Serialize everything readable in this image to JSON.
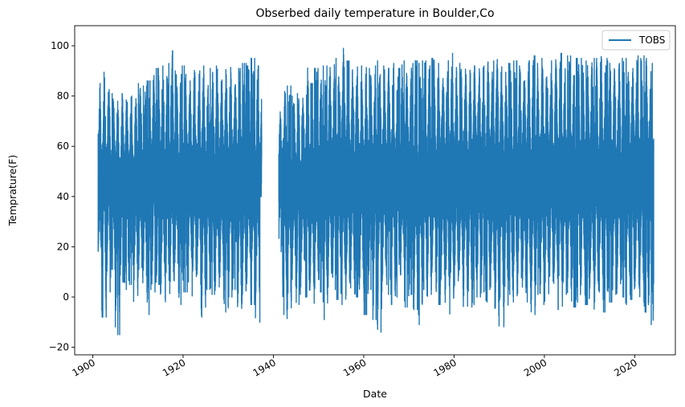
{
  "chart_data": {
    "type": "line",
    "title": "Obserbed daily temperature in Boulder,Co",
    "xlabel": "Date",
    "ylabel": "Temprature(F)",
    "xlim": [
      1896.0,
      2029.0
    ],
    "ylim": [
      -23,
      108
    ],
    "x_ticks": [
      1900,
      1920,
      1940,
      1960,
      1980,
      2000,
      2020
    ],
    "y_ticks": [
      -20,
      0,
      20,
      40,
      60,
      80,
      100
    ],
    "grid": false,
    "legend": {
      "position": "top-right",
      "entries": [
        "TOBS"
      ]
    },
    "series": [
      {
        "name": "TOBS",
        "color": "#1f77b4",
        "segments": [
          {
            "start": 1901.2,
            "end": 1937.4
          },
          {
            "start": 1941.2,
            "end": 2024.2
          }
        ],
        "yearly_extremes": [
          {
            "year": 1901,
            "min": 4,
            "max": 85
          },
          {
            "year": 1902,
            "min": -8,
            "max": 90
          },
          {
            "year": 1903,
            "min": 2,
            "max": 86
          },
          {
            "year": 1904,
            "min": 11,
            "max": 81
          },
          {
            "year": 1905,
            "min": -15,
            "max": 78
          },
          {
            "year": 1906,
            "min": 6,
            "max": 81
          },
          {
            "year": 1907,
            "min": 3,
            "max": 83
          },
          {
            "year": 1908,
            "min": 5,
            "max": 82
          },
          {
            "year": 1909,
            "min": -2,
            "max": 80
          },
          {
            "year": 1910,
            "min": 4,
            "max": 85
          },
          {
            "year": 1911,
            "min": 1,
            "max": 84
          },
          {
            "year": 1912,
            "min": -7,
            "max": 86
          },
          {
            "year": 1913,
            "min": 2,
            "max": 92
          },
          {
            "year": 1914,
            "min": 5,
            "max": 91
          },
          {
            "year": 1915,
            "min": 0,
            "max": 94
          },
          {
            "year": 1916,
            "min": -5,
            "max": 93
          },
          {
            "year": 1917,
            "min": 1,
            "max": 98
          },
          {
            "year": 1918,
            "min": 4,
            "max": 90
          },
          {
            "year": 1919,
            "min": -3,
            "max": 92
          },
          {
            "year": 1920,
            "min": 2,
            "max": 92
          },
          {
            "year": 1921,
            "min": 6,
            "max": 86
          },
          {
            "year": 1922,
            "min": -1,
            "max": 93
          },
          {
            "year": 1923,
            "min": 5,
            "max": 90
          },
          {
            "year": 1924,
            "min": -8,
            "max": 92
          },
          {
            "year": 1925,
            "min": 3,
            "max": 88
          },
          {
            "year": 1926,
            "min": 1,
            "max": 91
          },
          {
            "year": 1927,
            "min": -2,
            "max": 92
          },
          {
            "year": 1928,
            "min": 4,
            "max": 89
          },
          {
            "year": 1929,
            "min": -6,
            "max": 93
          },
          {
            "year": 1930,
            "min": 0,
            "max": 92
          },
          {
            "year": 1931,
            "min": 3,
            "max": 88
          },
          {
            "year": 1932,
            "min": -12,
            "max": 91
          },
          {
            "year": 1933,
            "min": -5,
            "max": 93
          },
          {
            "year": 1934,
            "min": 2,
            "max": 92
          },
          {
            "year": 1935,
            "min": -3,
            "max": 95
          },
          {
            "year": 1936,
            "min": -11,
            "max": 92
          },
          {
            "year": 1937,
            "min": 40,
            "max": 92
          },
          {
            "year": 1941,
            "min": 18,
            "max": 75
          },
          {
            "year": 1942,
            "min": -7,
            "max": 85
          },
          {
            "year": 1943,
            "min": -12,
            "max": 84
          },
          {
            "year": 1944,
            "min": 2,
            "max": 80
          },
          {
            "year": 1945,
            "min": -3,
            "max": 81
          },
          {
            "year": 1946,
            "min": 4,
            "max": 82
          },
          {
            "year": 1947,
            "min": 0,
            "max": 95
          },
          {
            "year": 1948,
            "min": -1,
            "max": 85
          },
          {
            "year": 1949,
            "min": -6,
            "max": 91
          },
          {
            "year": 1950,
            "min": 2,
            "max": 88
          },
          {
            "year": 1951,
            "min": -9,
            "max": 92
          },
          {
            "year": 1952,
            "min": 1,
            "max": 96
          },
          {
            "year": 1953,
            "min": 3,
            "max": 95
          },
          {
            "year": 1954,
            "min": -1,
            "max": 96
          },
          {
            "year": 1955,
            "min": -3,
            "max": 102
          },
          {
            "year": 1956,
            "min": -5,
            "max": 94
          },
          {
            "year": 1957,
            "min": 2,
            "max": 91
          },
          {
            "year": 1958,
            "min": 0,
            "max": 95
          },
          {
            "year": 1959,
            "min": 1,
            "max": 92
          },
          {
            "year": 1960,
            "min": -7,
            "max": 93
          },
          {
            "year": 1961,
            "min": 3,
            "max": 91
          },
          {
            "year": 1962,
            "min": -9,
            "max": 92
          },
          {
            "year": 1963,
            "min": -14,
            "max": 94
          },
          {
            "year": 1964,
            "min": 2,
            "max": 92
          },
          {
            "year": 1965,
            "min": 1,
            "max": 92
          },
          {
            "year": 1966,
            "min": -3,
            "max": 93
          },
          {
            "year": 1967,
            "min": 0,
            "max": 91
          },
          {
            "year": 1968,
            "min": 2,
            "max": 94
          },
          {
            "year": 1969,
            "min": -4,
            "max": 93
          },
          {
            "year": 1970,
            "min": 1,
            "max": 93
          },
          {
            "year": 1971,
            "min": -5,
            "max": 94
          },
          {
            "year": 1972,
            "min": -11,
            "max": 93
          },
          {
            "year": 1973,
            "min": 3,
            "max": 94
          },
          {
            "year": 1974,
            "min": -2,
            "max": 92
          },
          {
            "year": 1975,
            "min": 1,
            "max": 95
          },
          {
            "year": 1976,
            "min": -3,
            "max": 93
          },
          {
            "year": 1977,
            "min": 0,
            "max": 93
          },
          {
            "year": 1978,
            "min": -4,
            "max": 94
          },
          {
            "year": 1979,
            "min": -8,
            "max": 97
          },
          {
            "year": 1980,
            "min": 2,
            "max": 94
          },
          {
            "year": 1981,
            "min": 1,
            "max": 93
          },
          {
            "year": 1982,
            "min": -5,
            "max": 95
          },
          {
            "year": 1983,
            "min": -4,
            "max": 94
          },
          {
            "year": 1984,
            "min": -3,
            "max": 93
          },
          {
            "year": 1985,
            "min": 0,
            "max": 95
          },
          {
            "year": 1986,
            "min": 2,
            "max": 94
          },
          {
            "year": 1987,
            "min": -2,
            "max": 95
          },
          {
            "year": 1988,
            "min": 1,
            "max": 94
          },
          {
            "year": 1989,
            "min": -17,
            "max": 97
          },
          {
            "year": 1990,
            "min": -9,
            "max": 94
          },
          {
            "year": 1991,
            "min": -14,
            "max": 94
          },
          {
            "year": 1992,
            "min": 1,
            "max": 93
          },
          {
            "year": 1993,
            "min": -2,
            "max": 94
          },
          {
            "year": 1994,
            "min": 0,
            "max": 97
          },
          {
            "year": 1995,
            "min": -3,
            "max": 93
          },
          {
            "year": 1996,
            "min": -2,
            "max": 94
          },
          {
            "year": 1997,
            "min": -7,
            "max": 96
          },
          {
            "year": 1998,
            "min": 1,
            "max": 93
          },
          {
            "year": 1999,
            "min": -3,
            "max": 95
          },
          {
            "year": 2000,
            "min": -6,
            "max": 97
          },
          {
            "year": 2001,
            "min": 2,
            "max": 94
          },
          {
            "year": 2002,
            "min": -2,
            "max": 97
          },
          {
            "year": 2003,
            "min": -5,
            "max": 97
          },
          {
            "year": 2004,
            "min": 1,
            "max": 93
          },
          {
            "year": 2005,
            "min": -4,
            "max": 96
          },
          {
            "year": 2006,
            "min": -4,
            "max": 95
          },
          {
            "year": 2007,
            "min": -2,
            "max": 95
          },
          {
            "year": 2008,
            "min": 0,
            "max": 95
          },
          {
            "year": 2009,
            "min": -3,
            "max": 94
          },
          {
            "year": 2010,
            "min": 1,
            "max": 95
          },
          {
            "year": 2011,
            "min": -5,
            "max": 95
          },
          {
            "year": 2012,
            "min": 2,
            "max": 100
          },
          {
            "year": 2013,
            "min": -6,
            "max": 95
          },
          {
            "year": 2014,
            "min": -2,
            "max": 94
          },
          {
            "year": 2015,
            "min": 1,
            "max": 93
          },
          {
            "year": 2016,
            "min": -3,
            "max": 95
          },
          {
            "year": 2017,
            "min": 0,
            "max": 95
          },
          {
            "year": 2018,
            "min": -3,
            "max": 95
          },
          {
            "year": 2019,
            "min": -1,
            "max": 95
          },
          {
            "year": 2020,
            "min": 1,
            "max": 96
          },
          {
            "year": 2021,
            "min": -2,
            "max": 95
          },
          {
            "year": 2022,
            "min": -6,
            "max": 96
          },
          {
            "year": 2023,
            "min": -11,
            "max": 93
          }
        ]
      }
    ]
  }
}
